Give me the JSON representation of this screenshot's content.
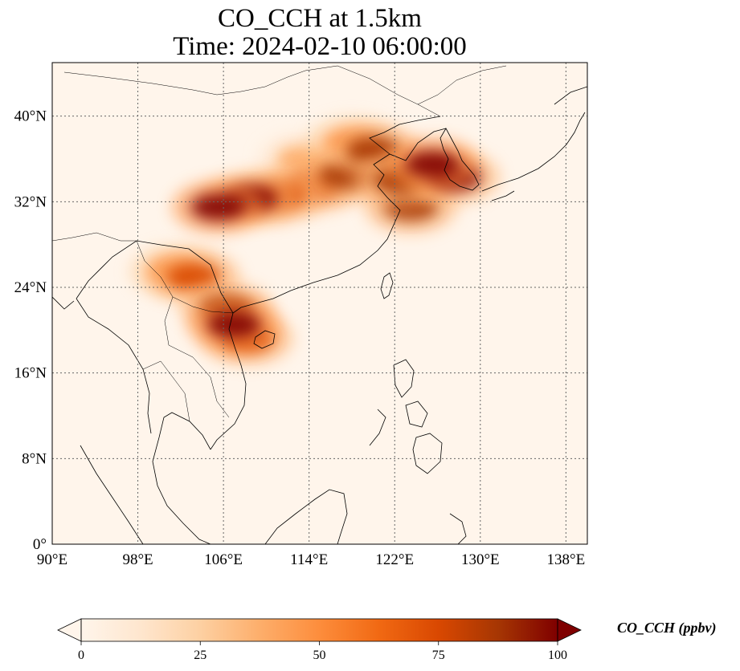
{
  "title": {
    "line1": "CO_CCH at 1.5km",
    "line2": "Time: 2024-02-10 06:00:00"
  },
  "map": {
    "lon_range": [
      90,
      140
    ],
    "lat_range": [
      0,
      45
    ],
    "lon_ticks": [
      {
        "value": 90,
        "label": "90°E"
      },
      {
        "value": 98,
        "label": "98°E"
      },
      {
        "value": 106,
        "label": "106°E"
      },
      {
        "value": 114,
        "label": "114°E"
      },
      {
        "value": 122,
        "label": "122°E"
      },
      {
        "value": 130,
        "label": "130°E"
      },
      {
        "value": 138,
        "label": "138°E"
      }
    ],
    "lat_ticks": [
      {
        "value": 0,
        "label": "0°"
      },
      {
        "value": 8,
        "label": "8°N"
      },
      {
        "value": 16,
        "label": "16°N"
      },
      {
        "value": 24,
        "label": "24°N"
      },
      {
        "value": 32,
        "label": "32°N"
      },
      {
        "value": 40,
        "label": "40°N"
      }
    ],
    "gridlines": true,
    "plumes": [
      {
        "lon": 107.0,
        "lat": 20.5,
        "level": 100
      },
      {
        "lon": 106.3,
        "lat": 22.0,
        "level": 90
      },
      {
        "lon": 108.2,
        "lat": 19.2,
        "level": 75
      },
      {
        "lon": 103.2,
        "lat": 25.0,
        "level": 70
      },
      {
        "lon": 101.5,
        "lat": 25.5,
        "level": 55
      },
      {
        "lon": 105.5,
        "lat": 31.5,
        "level": 100
      },
      {
        "lon": 108.5,
        "lat": 32.3,
        "level": 95
      },
      {
        "lon": 111.0,
        "lat": 32.5,
        "level": 80
      },
      {
        "lon": 114.5,
        "lat": 33.5,
        "level": 70
      },
      {
        "lon": 117.5,
        "lat": 34.5,
        "level": 85
      },
      {
        "lon": 120.0,
        "lat": 36.8,
        "level": 85
      },
      {
        "lon": 122.5,
        "lat": 34.0,
        "level": 90
      },
      {
        "lon": 125.5,
        "lat": 35.5,
        "level": 100
      },
      {
        "lon": 127.5,
        "lat": 34.3,
        "level": 95
      },
      {
        "lon": 123.5,
        "lat": 31.5,
        "level": 85
      },
      {
        "lon": 118.0,
        "lat": 37.5,
        "level": 55
      },
      {
        "lon": 113.5,
        "lat": 36.0,
        "level": 40
      }
    ]
  },
  "colorbar": {
    "min": 0,
    "max": 100,
    "ticks": [
      "0",
      "25",
      "50",
      "75",
      "100"
    ],
    "label": "CO_CCH (ppbv)",
    "colors": [
      "#fff5eb",
      "#fee6ce",
      "#fdd0a2",
      "#fdae6b",
      "#fd8d3c",
      "#f16913",
      "#d94801",
      "#a63603",
      "#7f0000"
    ]
  }
}
